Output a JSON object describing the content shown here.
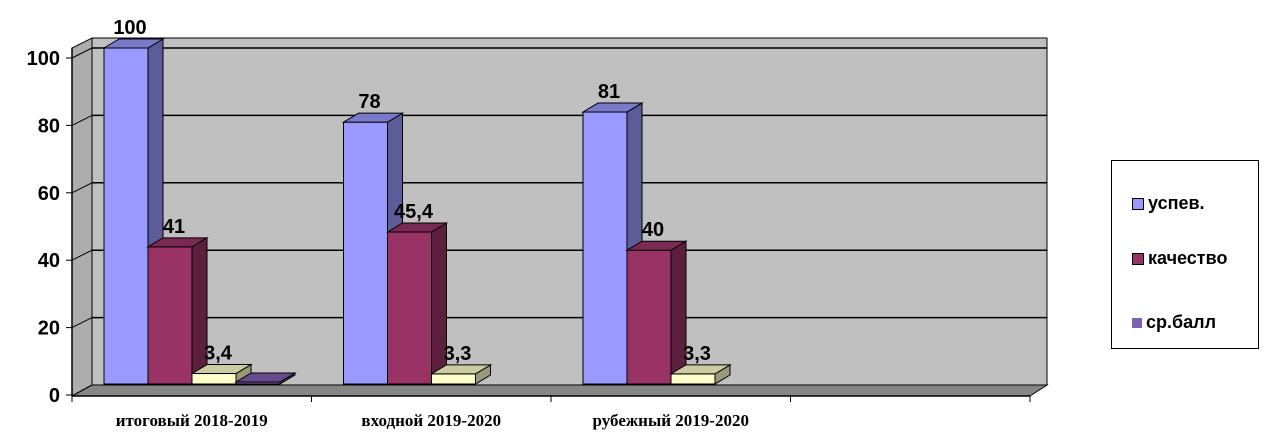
{
  "chart_data": {
    "type": "bar",
    "categories": [
      "итоговый 2018-2019",
      "входной 2019-2020",
      "рубежный 2019-2020",
      ""
    ],
    "series": [
      {
        "name": "успев.",
        "color": "#9999FF",
        "values": [
          100,
          78,
          81,
          null
        ],
        "labels": [
          "100",
          "78",
          "81",
          ""
        ]
      },
      {
        "name": "качество",
        "color": "#993366",
        "values": [
          41,
          45.4,
          40,
          null
        ],
        "labels": [
          "41",
          "45,4",
          "40",
          ""
        ]
      },
      {
        "name": "ср.балл",
        "color": "#FFFFCC",
        "values": [
          3.4,
          3.3,
          3.3,
          null
        ],
        "labels": [
          "3,4",
          "3,3",
          "3,3",
          ""
        ]
      },
      {
        "name": "",
        "color": "#7F5FAF",
        "values": [
          0,
          null,
          null,
          null
        ],
        "labels": [
          "",
          "",
          "",
          ""
        ]
      }
    ],
    "legend": [
      {
        "label": "успев.",
        "color": "#9999FF"
      },
      {
        "label": "качество",
        "color": "#993366"
      },
      {
        "label": "ср.балл",
        "color": "#7F5FAF"
      }
    ],
    "yticks": [
      "0",
      "20",
      "40",
      "60",
      "80",
      "100"
    ],
    "ylim": [
      0,
      100
    ],
    "grid": true,
    "projection": "3d",
    "legend_position": "right",
    "wall_color": "#C0C0C0"
  }
}
